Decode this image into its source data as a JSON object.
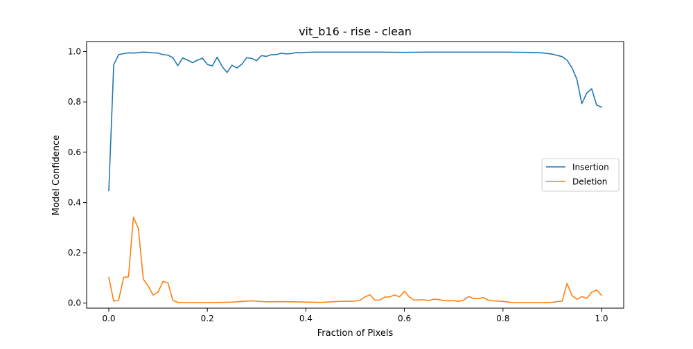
{
  "chart_data": {
    "type": "line",
    "title": "vit_b16 - rise - clean",
    "xlabel": "Fraction of Pixels",
    "ylabel": "Model Confidence",
    "xlim": [
      -0.045,
      1.045
    ],
    "ylim": [
      -0.02,
      1.04
    ],
    "xticks": [
      0.0,
      0.2,
      0.4,
      0.6,
      0.8,
      1.0
    ],
    "xtick_labels": [
      "0.0",
      "0.2",
      "0.4",
      "0.6",
      "0.8",
      "1.0"
    ],
    "yticks": [
      0.0,
      0.2,
      0.4,
      0.6,
      0.8,
      1.0
    ],
    "ytick_labels": [
      "0.0",
      "0.2",
      "0.4",
      "0.6",
      "0.8",
      "1.0"
    ],
    "grid": false,
    "legend_position": "center-right",
    "series": [
      {
        "name": "Insertion",
        "color": "#1f77b4",
        "x": [
          0.0,
          0.01,
          0.02,
          0.03,
          0.04,
          0.05,
          0.06,
          0.07,
          0.08,
          0.09,
          0.1,
          0.11,
          0.12,
          0.13,
          0.14,
          0.15,
          0.16,
          0.17,
          0.18,
          0.19,
          0.2,
          0.21,
          0.22,
          0.23,
          0.24,
          0.25,
          0.26,
          0.27,
          0.28,
          0.29,
          0.3,
          0.31,
          0.32,
          0.33,
          0.34,
          0.35,
          0.36,
          0.37,
          0.38,
          0.39,
          0.4,
          0.42,
          0.45,
          0.5,
          0.55,
          0.6,
          0.65,
          0.7,
          0.75,
          0.8,
          0.85,
          0.88,
          0.9,
          0.91,
          0.92,
          0.93,
          0.94,
          0.95,
          0.96,
          0.97,
          0.98,
          0.99,
          1.0
        ],
        "values": [
          0.447,
          0.948,
          0.988,
          0.992,
          0.995,
          0.994,
          0.996,
          0.998,
          0.997,
          0.995,
          0.994,
          0.988,
          0.986,
          0.976,
          0.944,
          0.975,
          0.966,
          0.956,
          0.966,
          0.974,
          0.949,
          0.943,
          0.978,
          0.941,
          0.917,
          0.946,
          0.935,
          0.95,
          0.976,
          0.973,
          0.964,
          0.984,
          0.981,
          0.988,
          0.988,
          0.994,
          0.991,
          0.992,
          0.996,
          0.995,
          0.997,
          0.998,
          0.998,
          0.998,
          0.998,
          0.997,
          0.998,
          0.998,
          0.998,
          0.998,
          0.997,
          0.995,
          0.99,
          0.985,
          0.98,
          0.966,
          0.936,
          0.89,
          0.793,
          0.835,
          0.852,
          0.788,
          0.779
        ]
      },
      {
        "name": "Deletion",
        "color": "#ff7f0e",
        "x": [
          0.0,
          0.01,
          0.02,
          0.03,
          0.04,
          0.05,
          0.06,
          0.07,
          0.08,
          0.09,
          0.1,
          0.11,
          0.12,
          0.13,
          0.14,
          0.15,
          0.17,
          0.2,
          0.25,
          0.29,
          0.32,
          0.35,
          0.38,
          0.43,
          0.47,
          0.5,
          0.51,
          0.52,
          0.53,
          0.54,
          0.55,
          0.56,
          0.57,
          0.58,
          0.59,
          0.6,
          0.61,
          0.62,
          0.63,
          0.64,
          0.65,
          0.66,
          0.67,
          0.68,
          0.69,
          0.7,
          0.71,
          0.72,
          0.73,
          0.74,
          0.75,
          0.76,
          0.77,
          0.78,
          0.8,
          0.82,
          0.85,
          0.88,
          0.9,
          0.91,
          0.92,
          0.93,
          0.94,
          0.95,
          0.96,
          0.97,
          0.98,
          0.99,
          1.0
        ],
        "values": [
          0.102,
          0.008,
          0.011,
          0.102,
          0.105,
          0.342,
          0.297,
          0.095,
          0.068,
          0.032,
          0.044,
          0.086,
          0.081,
          0.011,
          0.003,
          0.002,
          0.002,
          0.002,
          0.004,
          0.009,
          0.005,
          0.006,
          0.005,
          0.003,
          0.007,
          0.008,
          0.011,
          0.025,
          0.033,
          0.012,
          0.012,
          0.024,
          0.025,
          0.032,
          0.025,
          0.047,
          0.024,
          0.012,
          0.013,
          0.013,
          0.01,
          0.016,
          0.014,
          0.01,
          0.009,
          0.01,
          0.007,
          0.012,
          0.026,
          0.019,
          0.018,
          0.022,
          0.012,
          0.009,
          0.007,
          0.002,
          0.002,
          0.002,
          0.003,
          0.006,
          0.008,
          0.078,
          0.03,
          0.015,
          0.026,
          0.019,
          0.043,
          0.052,
          0.031
        ]
      }
    ]
  }
}
